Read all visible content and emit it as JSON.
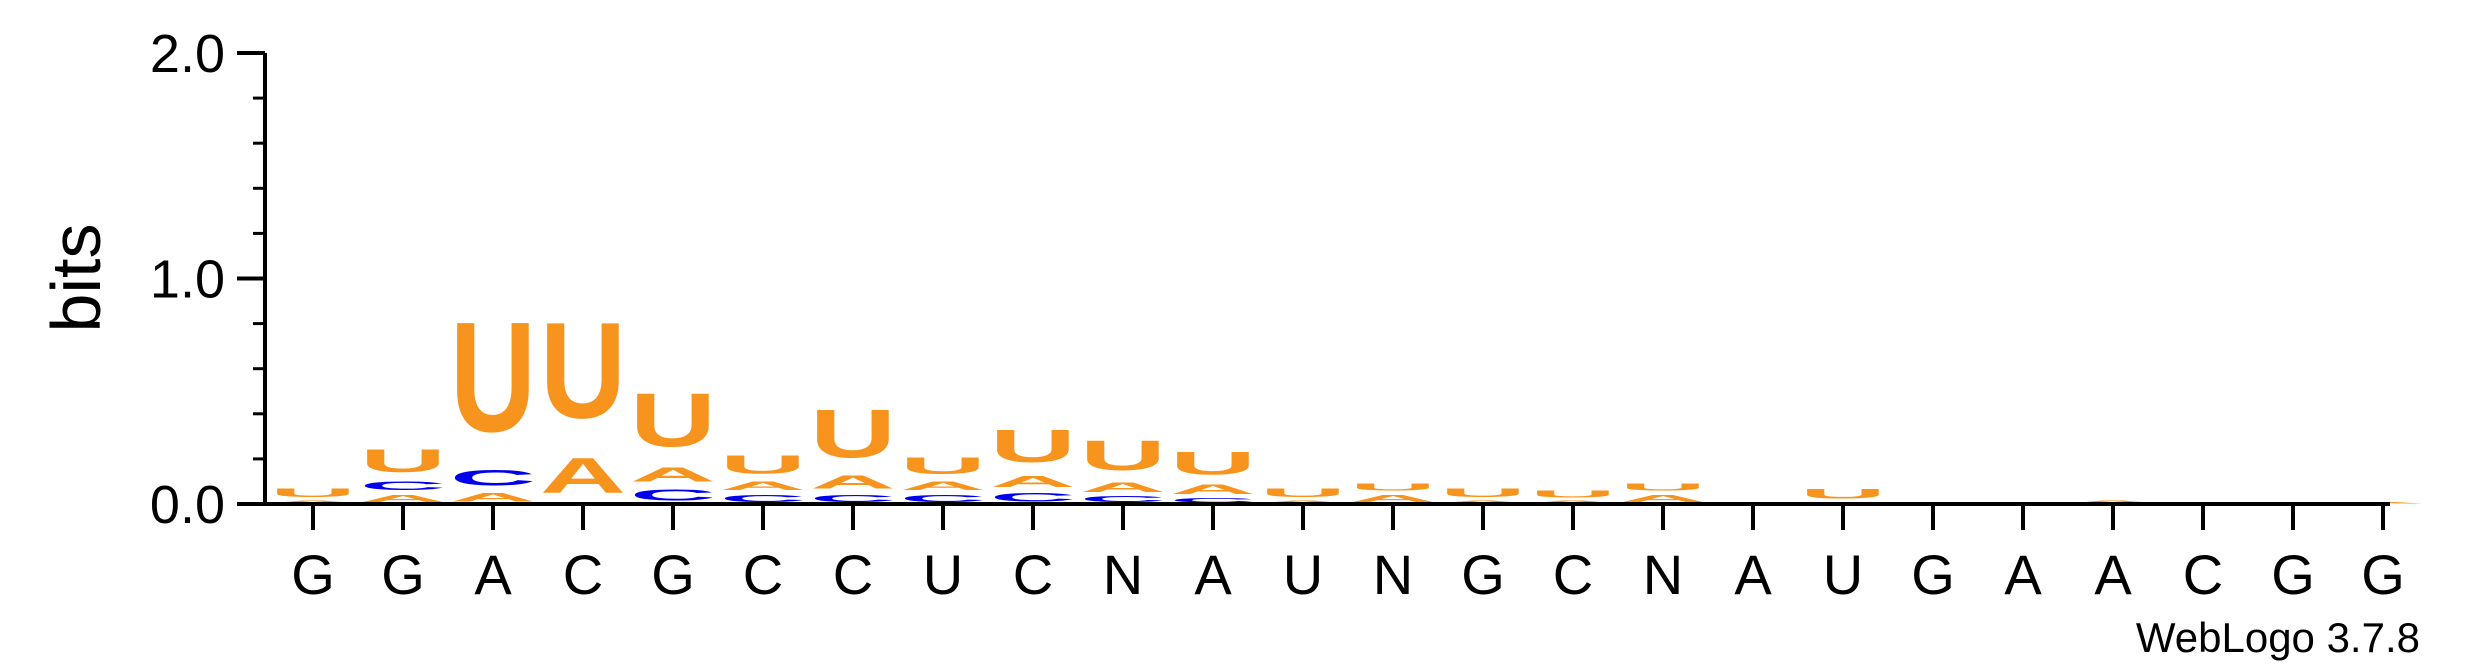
{
  "chart_data": {
    "type": "sequence_logo",
    "ylabel": "bits",
    "ylim": [
      0,
      2.0
    ],
    "yticks": [
      "0.0",
      "1.0",
      "2.0"
    ],
    "credit": "WebLogo 3.7.8",
    "colors": {
      "A": "#f7941d",
      "U": "#f7941d",
      "C": "#0000ee",
      "G": "#0000ee"
    },
    "positions": [
      {
        "label": "G",
        "stack": [
          {
            "letter": "A",
            "bits": 0.02
          },
          {
            "letter": "U",
            "bits": 0.06
          }
        ]
      },
      {
        "label": "G",
        "stack": [
          {
            "letter": "A",
            "bits": 0.05
          },
          {
            "letter": "C",
            "bits": 0.06
          },
          {
            "letter": "U",
            "bits": 0.16
          }
        ]
      },
      {
        "label": "A",
        "stack": [
          {
            "letter": "A",
            "bits": 0.06
          },
          {
            "letter": "C",
            "bits": 0.11
          },
          {
            "letter": "U",
            "bits": 0.78
          }
        ]
      },
      {
        "label": "C",
        "stack": [
          {
            "letter": "A",
            "bits": 0.25
          },
          {
            "letter": "U",
            "bits": 0.68
          }
        ]
      },
      {
        "label": "G",
        "stack": [
          {
            "letter": "C",
            "bits": 0.08
          },
          {
            "letter": "A",
            "bits": 0.1
          },
          {
            "letter": "U",
            "bits": 0.38
          }
        ]
      },
      {
        "label": "C",
        "stack": [
          {
            "letter": "C",
            "bits": 0.05
          },
          {
            "letter": "A",
            "bits": 0.06
          },
          {
            "letter": "U",
            "bits": 0.13
          }
        ]
      },
      {
        "label": "C",
        "stack": [
          {
            "letter": "C",
            "bits": 0.05
          },
          {
            "letter": "A",
            "bits": 0.09
          },
          {
            "letter": "U",
            "bits": 0.34
          }
        ]
      },
      {
        "label": "U",
        "stack": [
          {
            "letter": "C",
            "bits": 0.05
          },
          {
            "letter": "A",
            "bits": 0.06
          },
          {
            "letter": "U",
            "bits": 0.12
          }
        ]
      },
      {
        "label": "C",
        "stack": [
          {
            "letter": "C",
            "bits": 0.06
          },
          {
            "letter": "A",
            "bits": 0.08
          },
          {
            "letter": "U",
            "bits": 0.23
          }
        ]
      },
      {
        "label": "N",
        "stack": [
          {
            "letter": "C",
            "bits": 0.04
          },
          {
            "letter": "A",
            "bits": 0.07
          },
          {
            "letter": "U",
            "bits": 0.21
          }
        ]
      },
      {
        "label": "A",
        "stack": [
          {
            "letter": "C",
            "bits": 0.03
          },
          {
            "letter": "A",
            "bits": 0.07
          },
          {
            "letter": "U",
            "bits": 0.16
          }
        ]
      },
      {
        "label": "U",
        "stack": [
          {
            "letter": "A",
            "bits": 0.02
          },
          {
            "letter": "U",
            "bits": 0.06
          }
        ]
      },
      {
        "label": "N",
        "stack": [
          {
            "letter": "A",
            "bits": 0.05
          },
          {
            "letter": "U",
            "bits": 0.05
          }
        ]
      },
      {
        "label": "G",
        "stack": [
          {
            "letter": "A",
            "bits": 0.02
          },
          {
            "letter": "U",
            "bits": 0.06
          }
        ]
      },
      {
        "label": "C",
        "stack": [
          {
            "letter": "A",
            "bits": 0.02
          },
          {
            "letter": "U",
            "bits": 0.05
          }
        ]
      },
      {
        "label": "N",
        "stack": [
          {
            "letter": "A",
            "bits": 0.05
          },
          {
            "letter": "U",
            "bits": 0.05
          }
        ]
      },
      {
        "label": "A",
        "stack": [
          {
            "letter": "A",
            "bits": 0.01
          }
        ]
      },
      {
        "label": "U",
        "stack": [
          {
            "letter": "A",
            "bits": 0.01
          },
          {
            "letter": "U",
            "bits": 0.07
          }
        ]
      },
      {
        "label": "G",
        "stack": [
          {
            "letter": "A",
            "bits": 0.01
          }
        ]
      },
      {
        "label": "A",
        "stack": [
          {
            "letter": "A",
            "bits": 0.01
          }
        ]
      },
      {
        "label": "A",
        "stack": [
          {
            "letter": "A",
            "bits": 0.02
          }
        ]
      },
      {
        "label": "C",
        "stack": []
      },
      {
        "label": "G",
        "stack": []
      },
      {
        "label": "G",
        "stack": [
          {
            "letter": "A",
            "bits": 0.01
          }
        ]
      }
    ]
  }
}
